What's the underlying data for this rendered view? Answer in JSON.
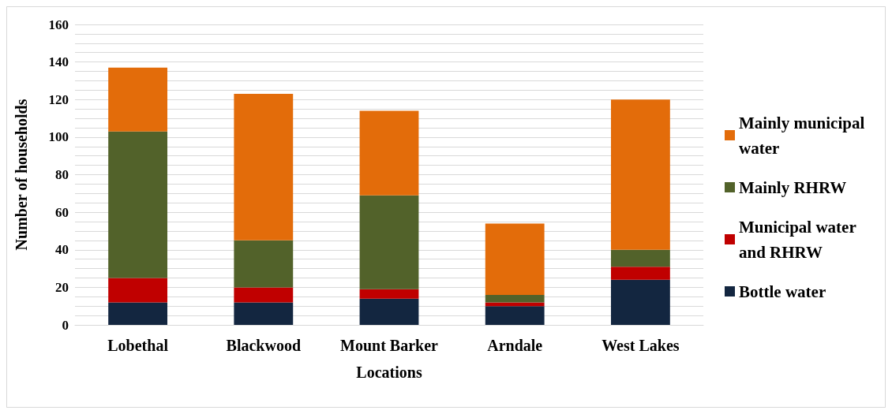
{
  "chart_data": {
    "type": "bar",
    "stacked": true,
    "xlabel": "Locations",
    "ylabel": "Number of households",
    "categories": [
      "Lobethal",
      "Blackwood",
      "Mount Barker",
      "Arndale",
      "West Lakes"
    ],
    "series": [
      {
        "name": "Bottle water",
        "color": "#132640",
        "values": [
          12,
          12,
          14,
          10,
          24
        ]
      },
      {
        "name": "Municipal water and RHRW",
        "color": "#c00000",
        "values": [
          13,
          8,
          5,
          2,
          7
        ]
      },
      {
        "name": "Mainly RHRW",
        "color": "#52622a",
        "values": [
          78,
          25,
          50,
          4,
          9
        ]
      },
      {
        "name": "Mainly municipal water",
        "color": "#e36c0a",
        "values": [
          34,
          78,
          45,
          38,
          80
        ]
      }
    ],
    "ylim": [
      0,
      160
    ],
    "yticks": [
      0,
      {
        "value": 5,
        "label": null
      },
      {
        "value": 10,
        "label": null
      },
      {
        "value": 15,
        "label": null
      },
      20,
      {
        "value": 25,
        "label": null
      },
      {
        "value": 30,
        "label": null
      },
      {
        "value": 35,
        "label": null
      },
      40,
      {
        "value": 45,
        "label": null
      },
      {
        "value": 50,
        "label": null
      },
      {
        "value": 55,
        "label": null
      },
      60,
      {
        "value": 65,
        "label": null
      },
      {
        "value": 70,
        "label": null
      },
      {
        "value": 75,
        "label": null
      },
      80,
      {
        "value": 85,
        "label": null
      },
      {
        "value": 90,
        "label": null
      },
      {
        "value": 95,
        "label": null
      },
      100,
      {
        "value": 105,
        "label": null
      },
      {
        "value": 110,
        "label": null
      },
      {
        "value": 115,
        "label": null
      },
      120,
      {
        "value": 125,
        "label": null
      },
      {
        "value": 130,
        "label": null
      },
      {
        "value": 135,
        "label": null
      },
      140,
      {
        "value": 145,
        "label": null
      },
      {
        "value": 150,
        "label": null
      },
      {
        "value": 155,
        "label": null
      },
      160
    ],
    "grid": "y",
    "legend": "right"
  }
}
